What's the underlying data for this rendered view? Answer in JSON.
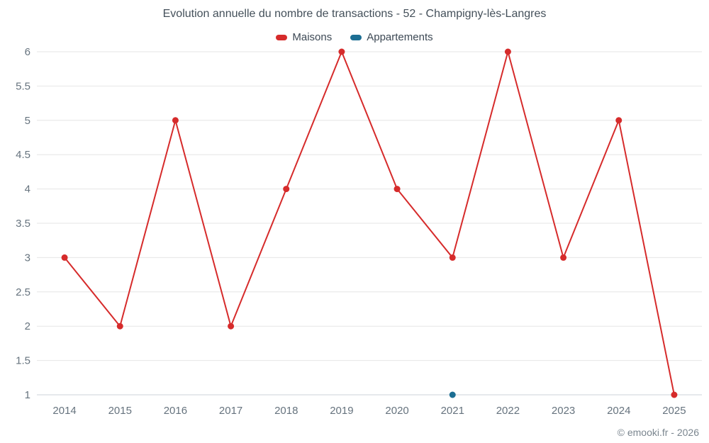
{
  "chart_data": {
    "type": "line",
    "title": "Evolution annuelle du nombre de transactions - 52 - Champigny-lès-Langres",
    "categories": [
      "2014",
      "2015",
      "2016",
      "2017",
      "2018",
      "2019",
      "2020",
      "2021",
      "2022",
      "2023",
      "2024",
      "2025"
    ],
    "series": [
      {
        "name": "Maisons",
        "color": "#d62b2b",
        "values": [
          3,
          2,
          5,
          2,
          4,
          6,
          4,
          3,
          6,
          3,
          5,
          1
        ]
      },
      {
        "name": "Appartements",
        "color": "#1c6e93",
        "values": [
          null,
          null,
          null,
          null,
          null,
          null,
          null,
          1,
          null,
          null,
          null,
          null
        ]
      }
    ],
    "xlabel": "",
    "ylabel": "",
    "ylim": [
      1,
      6
    ],
    "ytick_step": 0.5,
    "grid": true,
    "legend_position": "top",
    "grid_color": "#e6e6e6",
    "axis_line_color": "#ccd3d9",
    "label_color": "#66737e"
  },
  "footer": {
    "copyright": "© emooki.fr - 2026"
  }
}
